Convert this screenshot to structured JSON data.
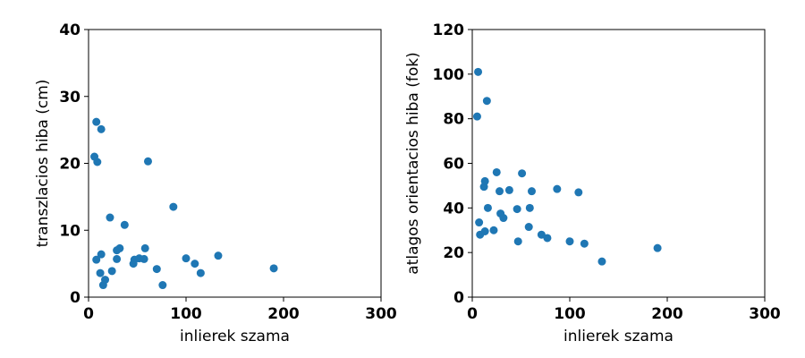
{
  "chart_data": [
    {
      "type": "scatter",
      "xlabel": "inlierek szama",
      "ylabel": "transzlacios hiba (cm)",
      "xlim": [
        0,
        300
      ],
      "ylim": [
        0,
        40
      ],
      "xticks": [
        0,
        100,
        200,
        300
      ],
      "yticks": [
        0,
        10,
        20,
        30,
        40
      ],
      "grid": false,
      "legend": "none",
      "color": "#1f77b4",
      "points": [
        {
          "x": 6,
          "y": 21
        },
        {
          "x": 8,
          "y": 26.2
        },
        {
          "x": 8,
          "y": 5.6
        },
        {
          "x": 9,
          "y": 20.2
        },
        {
          "x": 12,
          "y": 3.6
        },
        {
          "x": 13,
          "y": 25.1
        },
        {
          "x": 13,
          "y": 6.4
        },
        {
          "x": 15,
          "y": 1.8
        },
        {
          "x": 17,
          "y": 2.6
        },
        {
          "x": 22,
          "y": 11.9
        },
        {
          "x": 24,
          "y": 3.9
        },
        {
          "x": 29,
          "y": 7.0
        },
        {
          "x": 29,
          "y": 5.7
        },
        {
          "x": 32,
          "y": 7.3
        },
        {
          "x": 37,
          "y": 10.8
        },
        {
          "x": 46,
          "y": 5.0
        },
        {
          "x": 47,
          "y": 5.6
        },
        {
          "x": 52,
          "y": 5.8
        },
        {
          "x": 57,
          "y": 5.7
        },
        {
          "x": 58,
          "y": 7.3
        },
        {
          "x": 61,
          "y": 20.3
        },
        {
          "x": 70,
          "y": 4.2
        },
        {
          "x": 76,
          "y": 1.8
        },
        {
          "x": 87,
          "y": 13.5
        },
        {
          "x": 100,
          "y": 5.8
        },
        {
          "x": 109,
          "y": 5.0
        },
        {
          "x": 115,
          "y": 3.6
        },
        {
          "x": 133,
          "y": 6.2
        },
        {
          "x": 190,
          "y": 4.3
        }
      ]
    },
    {
      "type": "scatter",
      "xlabel": "inlierek szama",
      "ylabel": "atlagos orientacios hiba (fok)",
      "xlim": [
        0,
        300
      ],
      "ylim": [
        0,
        120
      ],
      "xticks": [
        0,
        100,
        200,
        300
      ],
      "yticks": [
        0,
        20,
        40,
        60,
        80,
        100,
        120
      ],
      "grid": false,
      "legend": "none",
      "color": "#1f77b4",
      "points": [
        {
          "x": 5,
          "y": 81
        },
        {
          "x": 6,
          "y": 101
        },
        {
          "x": 7,
          "y": 33.5
        },
        {
          "x": 8,
          "y": 28
        },
        {
          "x": 12,
          "y": 49.5
        },
        {
          "x": 13,
          "y": 52
        },
        {
          "x": 13,
          "y": 29.5
        },
        {
          "x": 15,
          "y": 88
        },
        {
          "x": 16,
          "y": 40
        },
        {
          "x": 22,
          "y": 30
        },
        {
          "x": 25,
          "y": 56
        },
        {
          "x": 28,
          "y": 47.5
        },
        {
          "x": 29,
          "y": 37.5
        },
        {
          "x": 32,
          "y": 35.5
        },
        {
          "x": 38,
          "y": 48
        },
        {
          "x": 46,
          "y": 39.5
        },
        {
          "x": 47,
          "y": 25
        },
        {
          "x": 51,
          "y": 55.5
        },
        {
          "x": 58,
          "y": 31.5
        },
        {
          "x": 59,
          "y": 40
        },
        {
          "x": 61,
          "y": 47.5
        },
        {
          "x": 71,
          "y": 28
        },
        {
          "x": 77,
          "y": 26.5
        },
        {
          "x": 87,
          "y": 48.5
        },
        {
          "x": 100,
          "y": 25
        },
        {
          "x": 109,
          "y": 47
        },
        {
          "x": 115,
          "y": 24
        },
        {
          "x": 133,
          "y": 16
        },
        {
          "x": 190,
          "y": 22
        }
      ]
    }
  ]
}
